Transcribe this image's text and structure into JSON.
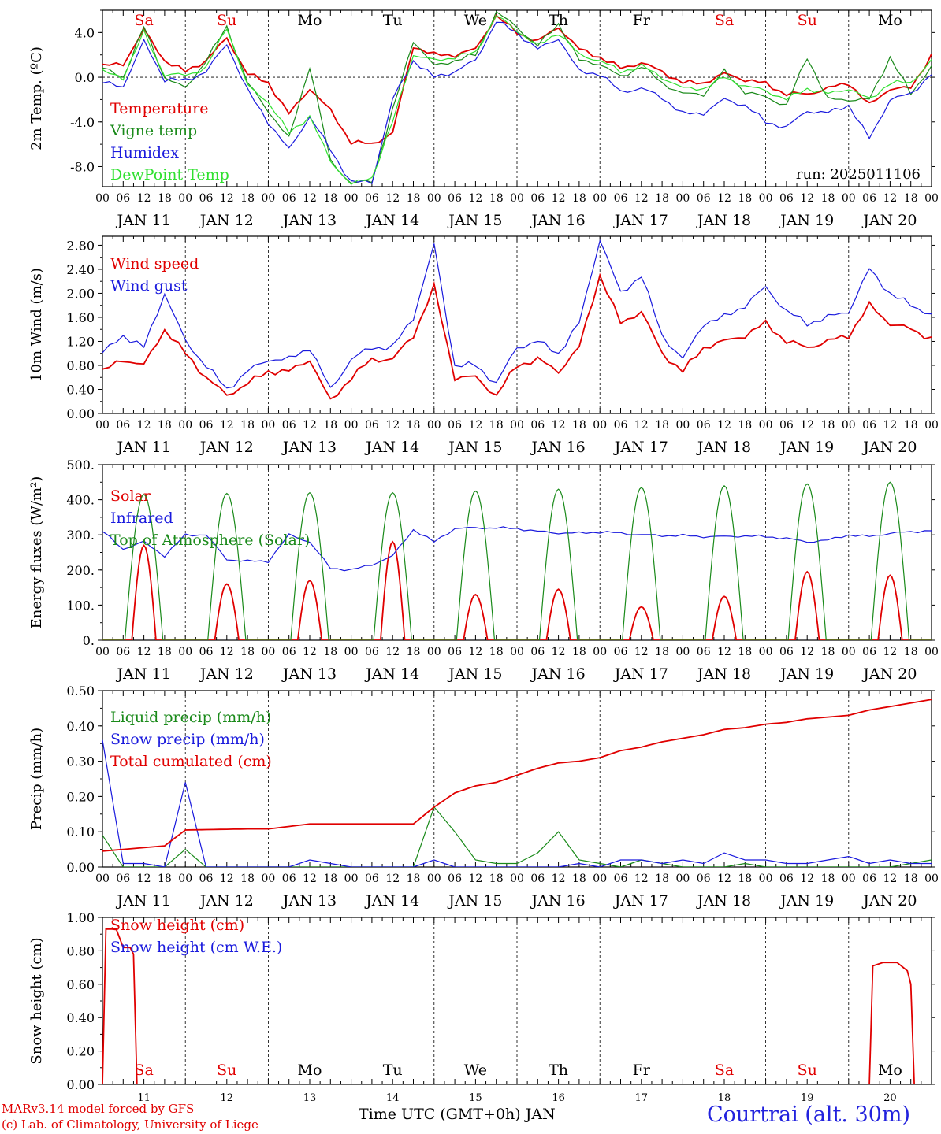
{
  "footer": {
    "model": "MARv3.14 model forced by GFS",
    "copyright": "(c) Lab. of Climatology, University of Liege",
    "axis_title": "Time UTC (GMT+0h) JAN",
    "station": "Courtrai (alt. 30m)"
  },
  "days": {
    "dates": [
      "JAN 11",
      "JAN 12",
      "JAN 13",
      "JAN 14",
      "JAN 15",
      "JAN 16",
      "JAN 17",
      "JAN 18",
      "JAN 19",
      "JAN 20"
    ],
    "weekdays": [
      "Sa",
      "Su",
      "Mo",
      "Tu",
      "We",
      "Th",
      "Fr",
      "Sa",
      "Su",
      "Mo"
    ],
    "weekend_flags": [
      true,
      true,
      false,
      false,
      false,
      false,
      false,
      true,
      true,
      false
    ],
    "hour_ticks": [
      "00",
      "06",
      "12",
      "18"
    ],
    "last_tick": "00",
    "bottom_day_numbers": [
      "11",
      "12",
      "13",
      "14",
      "15",
      "16",
      "17",
      "18",
      "19",
      "20"
    ]
  },
  "colors": {
    "red": "#e00000",
    "green": "#1a8a1a",
    "blue": "#1a1add",
    "lightgreen": "#30e030"
  },
  "chart_data": [
    {
      "type": "line",
      "ylabel": "2m Temp. (ºC)",
      "ylim": [
        -9.8,
        6
      ],
      "yticks": [
        -8,
        -4,
        0,
        4
      ],
      "ytick_labels": [
        "-8.0",
        "-4.0",
        "0.0",
        "4.0"
      ],
      "zero_line": true,
      "annotation": "run: 2025011106",
      "x_hours": [
        0,
        6,
        12,
        18,
        24,
        30,
        36,
        42,
        48,
        54,
        60,
        66,
        72,
        78,
        84,
        90,
        96,
        102,
        108,
        114,
        120,
        126,
        132,
        138,
        144,
        150,
        156,
        162,
        168,
        174,
        180,
        186,
        192,
        198,
        204,
        210,
        216,
        222,
        228,
        234,
        240
      ],
      "series": [
        {
          "name": "Temperature",
          "color": "red",
          "values": [
            1,
            1.2,
            4.2,
            1.5,
            0.5,
            1.5,
            3.5,
            0.3,
            -0.5,
            -3.3,
            -1,
            -3,
            -5.8,
            -6,
            -5,
            2.8,
            2,
            2,
            2.5,
            5.5,
            4,
            3.2,
            4.5,
            2.5,
            1.8,
            0.8,
            1.3,
            0.5,
            -0.5,
            -0.5,
            0.3,
            -0.2,
            -0.6,
            -1.5,
            -1.5,
            -1,
            -0.5,
            -2.5,
            -1,
            -1,
            2
          ]
        },
        {
          "name": "Vigne temp",
          "color": "green",
          "values": [
            0.8,
            0,
            4.5,
            0,
            -1,
            1.5,
            4.5,
            -0.5,
            -3,
            -5.5,
            1,
            -7.5,
            -9.5,
            -9.3,
            -3,
            3.3,
            1,
            1.5,
            2,
            5.8,
            4.5,
            2.8,
            4.8,
            1.5,
            1.2,
            0,
            1,
            -0.5,
            -1.5,
            -1.5,
            0.5,
            -1.3,
            -1.8,
            -2.5,
            1.8,
            -2,
            -2,
            -2,
            1.8,
            -1.5,
            1
          ]
        },
        {
          "name": "Humidex",
          "color": "blue",
          "values": [
            -0.5,
            -0.8,
            3.2,
            -0.2,
            -0.3,
            0.5,
            3,
            -1.2,
            -4,
            -6.5,
            -3.5,
            -6.5,
            -9.4,
            -9.4,
            -2,
            1.5,
            0,
            0.5,
            1.5,
            5,
            4,
            2.5,
            3.5,
            0.5,
            0.3,
            -1.3,
            -1,
            -1.8,
            -3.3,
            -3.2,
            -2,
            -2.5,
            -4,
            -4.5,
            -3,
            -3.2,
            -2.5,
            -5.5,
            -2,
            -1.5,
            0.3
          ]
        },
        {
          "name": "DewPoint Temp",
          "color": "lightgreen",
          "values": [
            0.5,
            0,
            4,
            0.2,
            0.2,
            0.8,
            4.5,
            -0.8,
            -2.2,
            -5,
            -3.5,
            -7.5,
            -9.6,
            -9,
            -4,
            2,
            1.5,
            1.8,
            2.2,
            5.5,
            4.2,
            2.8,
            4,
            2,
            1.5,
            0.5,
            1,
            0,
            -1,
            -1,
            0,
            -0.8,
            -1.2,
            -2,
            -1,
            -1.5,
            -1,
            -2,
            -0.5,
            -0.5,
            1.5
          ]
        }
      ]
    },
    {
      "type": "line",
      "ylabel": "10m Wind (m/s)",
      "ylim": [
        0,
        2.95
      ],
      "yticks": [
        0,
        0.4,
        0.8,
        1.2,
        1.6,
        2,
        2.4,
        2.8
      ],
      "ytick_labels": [
        "0.00",
        "0.40",
        "0.80",
        "1.20",
        "1.60",
        "2.00",
        "2.40",
        "2.80"
      ],
      "x_hours": [
        0,
        6,
        12,
        18,
        24,
        30,
        36,
        42,
        48,
        54,
        60,
        66,
        72,
        78,
        84,
        90,
        96,
        102,
        108,
        114,
        120,
        126,
        132,
        138,
        144,
        150,
        156,
        162,
        168,
        174,
        180,
        186,
        192,
        198,
        204,
        210,
        216,
        222,
        228,
        234,
        240
      ],
      "series": [
        {
          "name": "Wind speed",
          "color": "red",
          "values": [
            0.7,
            0.9,
            0.8,
            1.4,
            1,
            0.6,
            0.3,
            0.5,
            0.7,
            0.7,
            0.9,
            0.2,
            0.6,
            0.9,
            0.9,
            1.3,
            2.1,
            0.6,
            0.6,
            0.3,
            0.8,
            0.9,
            0.7,
            1.1,
            2.3,
            1.5,
            1.7,
            1,
            0.7,
            1.1,
            1.2,
            1.3,
            1.5,
            1.2,
            1.1,
            1.2,
            1.3,
            1.8,
            1.5,
            1.4,
            1.25
          ]
        },
        {
          "name": "Wind gust",
          "color": "blue",
          "values": [
            1,
            1.3,
            1.1,
            2,
            1.2,
            0.8,
            0.4,
            0.7,
            0.9,
            0.9,
            1.1,
            0.4,
            0.9,
            1.1,
            1.1,
            1.6,
            2.8,
            0.8,
            0.8,
            0.5,
            1.1,
            1.2,
            1,
            1.5,
            2.9,
            2,
            2.3,
            1.3,
            0.9,
            1.5,
            1.6,
            1.8,
            2.1,
            1.7,
            1.5,
            1.6,
            1.7,
            2.4,
            2,
            1.8,
            1.65
          ]
        }
      ]
    },
    {
      "type": "line",
      "ylabel": "Energy fluxes (W/m²)",
      "ylim": [
        0,
        500
      ],
      "yticks": [
        0,
        100,
        200,
        300,
        400,
        500
      ],
      "ytick_labels": [
        "0.",
        "100.",
        "200.",
        "300.",
        "400.",
        "500."
      ],
      "x_hours": [
        0,
        6,
        12,
        18,
        24,
        30,
        36,
        42,
        48,
        54,
        60,
        66,
        72,
        78,
        84,
        90,
        96,
        102,
        108,
        114,
        120,
        126,
        132,
        138,
        144,
        150,
        156,
        162,
        168,
        174,
        180,
        186,
        192,
        198,
        204,
        210,
        216,
        222,
        228,
        234,
        240
      ],
      "series": [
        {
          "name": "Solar",
          "color": "red",
          "peaks": [
            270,
            160,
            170,
            280,
            130,
            145,
            95,
            125,
            195,
            185
          ]
        },
        {
          "name": "Infrared",
          "color": "blue",
          "values": [
            310,
            260,
            280,
            240,
            300,
            300,
            230,
            225,
            225,
            300,
            280,
            205,
            200,
            215,
            240,
            315,
            280,
            318,
            320,
            320,
            318,
            310,
            305,
            305,
            308,
            305,
            300,
            298,
            298,
            295,
            295,
            297,
            295,
            290,
            280,
            285,
            300,
            295,
            305,
            308,
            313
          ]
        },
        {
          "name": "Top of Atmosphere (Solar)",
          "color": "green",
          "peaks": [
            415,
            418,
            420,
            420,
            425,
            430,
            435,
            440,
            445,
            450
          ]
        }
      ]
    },
    {
      "type": "line",
      "ylabel": "Precip (mm/h)",
      "ylim": [
        0,
        0.5
      ],
      "yticks": [
        0,
        0.1,
        0.2,
        0.3,
        0.4,
        0.5
      ],
      "ytick_labels": [
        "0.00",
        "0.10",
        "0.20",
        "0.30",
        "0.40",
        "0.50"
      ],
      "x_hours": [
        0,
        6,
        12,
        18,
        24,
        30,
        36,
        42,
        48,
        54,
        60,
        66,
        72,
        78,
        84,
        90,
        96,
        102,
        108,
        114,
        120,
        126,
        132,
        138,
        144,
        150,
        156,
        162,
        168,
        174,
        180,
        186,
        192,
        198,
        204,
        210,
        216,
        222,
        228,
        234,
        240
      ],
      "series": [
        {
          "name": "Liquid precip (mm/h)",
          "color": "green",
          "values": [
            0.09,
            0,
            0,
            0,
            0.05,
            0,
            0,
            0,
            0,
            0,
            0,
            0,
            0,
            0,
            0,
            0,
            0.17,
            0.1,
            0.02,
            0.01,
            0.01,
            0.04,
            0.1,
            0.02,
            0.01,
            0,
            0.02,
            0.01,
            0,
            0,
            0,
            0.01,
            0,
            0,
            0,
            0,
            0,
            0,
            0,
            0.01,
            0.02
          ]
        },
        {
          "name": "Snow precip (mm/h)",
          "color": "blue",
          "values": [
            0.36,
            0.01,
            0.01,
            0,
            0.24,
            0,
            0,
            0,
            0,
            0,
            0.02,
            0.01,
            0,
            0,
            0,
            0,
            0.02,
            0,
            0,
            0,
            0,
            0,
            0,
            0.01,
            0,
            0.02,
            0.02,
            0.01,
            0.02,
            0.01,
            0.04,
            0.02,
            0.02,
            0.01,
            0.01,
            0.02,
            0.03,
            0.01,
            0.02,
            0.01,
            0.01
          ]
        },
        {
          "name": "Total cumulated (cm)",
          "color": "red",
          "values": [
            0.045,
            0.05,
            0.055,
            0.06,
            0.105,
            0.106,
            0.107,
            0.108,
            0.108,
            0.115,
            0.122,
            0.122,
            0.122,
            0.122,
            0.122,
            0.122,
            0.17,
            0.21,
            0.23,
            0.24,
            0.26,
            0.28,
            0.295,
            0.3,
            0.31,
            0.33,
            0.34,
            0.355,
            0.365,
            0.375,
            0.39,
            0.395,
            0.405,
            0.41,
            0.42,
            0.425,
            0.43,
            0.445,
            0.455,
            0.465,
            0.475
          ]
        }
      ]
    },
    {
      "type": "line",
      "ylabel": "Snow height (cm)",
      "ylim": [
        0,
        1
      ],
      "yticks": [
        0,
        0.2,
        0.4,
        0.6,
        0.8,
        1
      ],
      "ytick_labels": [
        "0.00",
        "0.20",
        "0.40",
        "0.60",
        "0.80",
        "1.00"
      ],
      "series": [
        {
          "name": "Snow height (cm)",
          "color": "red",
          "points": [
            [
              0,
              0
            ],
            [
              1,
              0.93
            ],
            [
              4,
              0.93
            ],
            [
              6,
              0.82
            ],
            [
              8,
              0.82
            ],
            [
              9,
              0.78
            ],
            [
              10,
              0
            ],
            [
              222,
              0
            ],
            [
              223,
              0.71
            ],
            [
              226,
              0.73
            ],
            [
              230,
              0.73
            ],
            [
              233,
              0.68
            ],
            [
              234,
              0.6
            ],
            [
              235,
              0
            ],
            [
              240,
              0
            ]
          ]
        },
        {
          "name": "Snow height (cm W.E.)",
          "color": "blue",
          "points": [
            [
              0,
              0
            ],
            [
              240,
              0
            ]
          ]
        }
      ]
    }
  ]
}
